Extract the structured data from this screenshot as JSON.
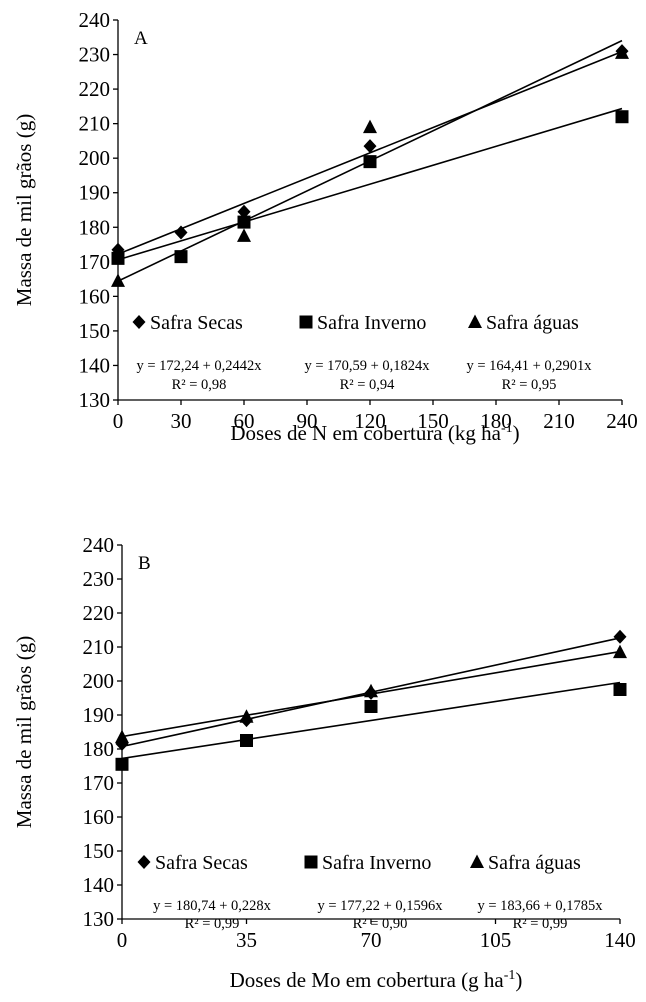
{
  "chart_data": [
    {
      "type": "scatter",
      "panel": "A",
      "xlabel": "Doses de N em cobertura (kg ha",
      "xlabel_sup": "-1",
      "xlabel_close": ")",
      "ylabel": "Massa de mil grãos (g)",
      "xlim": [
        0,
        240
      ],
      "ylim": [
        130,
        240
      ],
      "xticks": [
        0,
        30,
        60,
        90,
        120,
        150,
        180,
        210,
        240
      ],
      "yticks": [
        130,
        140,
        150,
        160,
        170,
        180,
        190,
        200,
        210,
        220,
        230,
        240
      ],
      "grid": false,
      "legend_position": "center",
      "series": [
        {
          "name": "Safra Secas",
          "marker": "diamond",
          "x": [
            0,
            30,
            60,
            120,
            240
          ],
          "y": [
            173.5,
            178.5,
            184.5,
            203.5,
            231
          ],
          "trend": {
            "intercept": 172.24,
            "slope": 0.2442
          },
          "equation": "y = 172,24 + 0,2442x",
          "r2": "R² = 0,98"
        },
        {
          "name": "Safra Inverno",
          "marker": "square",
          "x": [
            0,
            30,
            60,
            120,
            240
          ],
          "y": [
            171,
            171.5,
            181.5,
            199,
            212
          ],
          "trend": {
            "intercept": 170.59,
            "slope": 0.1824
          },
          "equation": "y = 170,59 + 0,1824x",
          "r2": "R² = 0,94"
        },
        {
          "name": "Safra águas",
          "marker": "triangle",
          "x": [
            0,
            60,
            120,
            240
          ],
          "y": [
            164.5,
            177.5,
            209,
            230.5
          ],
          "trend": {
            "intercept": 164.41,
            "slope": 0.2901
          },
          "equation": "y = 164,41 + 0,2901x",
          "r2": "R² = 0,95"
        }
      ]
    },
    {
      "type": "scatter",
      "panel": "B",
      "xlabel": "Doses de Mo em cobertura (g ha",
      "xlabel_sup": "-1",
      "xlabel_close": ")",
      "ylabel": "Massa de mil grãos (g)",
      "xlim": [
        0,
        140
      ],
      "ylim": [
        130,
        240
      ],
      "xticks": [
        0,
        35,
        70,
        105,
        140
      ],
      "yticks": [
        130,
        140,
        150,
        160,
        170,
        180,
        190,
        200,
        210,
        220,
        230,
        240
      ],
      "grid": false,
      "legend_position": "center",
      "series": [
        {
          "name": "Safra Secas",
          "marker": "diamond",
          "x": [
            0,
            35,
            70,
            140
          ],
          "y": [
            181.5,
            188.5,
            196.5,
            213
          ],
          "trend": {
            "intercept": 180.74,
            "slope": 0.228
          },
          "equation": "y = 180,74 + 0,228x",
          "r2": "R² = 0,99"
        },
        {
          "name": "Safra Inverno",
          "marker": "square",
          "x": [
            0,
            35,
            70,
            140
          ],
          "y": [
            175.5,
            182.5,
            192.5,
            197.5
          ],
          "trend": {
            "intercept": 177.22,
            "slope": 0.1596
          },
          "equation": "y = 177,22 + 0,1596x",
          "r2": "R² = 0,90"
        },
        {
          "name": "Safra águas",
          "marker": "triangle",
          "x": [
            0,
            35,
            70,
            140
          ],
          "y": [
            183.5,
            189.5,
            197,
            208.5
          ],
          "trend": {
            "intercept": 183.66,
            "slope": 0.1785
          },
          "equation": "y = 183,66 + 0,1785x",
          "r2": "R² = 0,99"
        }
      ]
    }
  ]
}
